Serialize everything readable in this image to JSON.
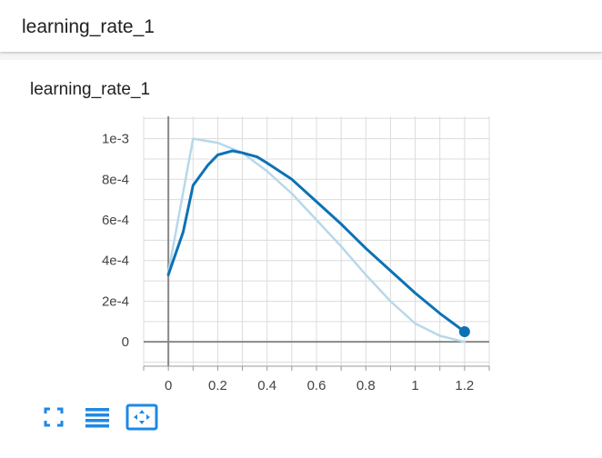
{
  "header": {
    "title": "learning_rate_1"
  },
  "card": {
    "title": "learning_rate_1"
  },
  "toolbar": {
    "buttons": [
      {
        "icon": "fullscreen-icon"
      },
      {
        "icon": "list-icon"
      },
      {
        "icon": "fit-domain-icon"
      }
    ]
  },
  "colors": {
    "smoothed": "#0c72b5",
    "raw": "#b8d8ea",
    "grid": "#dcdcdc",
    "axis": "#888888",
    "icon": "#1e88e5"
  },
  "chart_data": {
    "type": "line",
    "title": "learning_rate_1",
    "xlabel": "",
    "ylabel": "",
    "xlim": [
      -0.1,
      1.3
    ],
    "ylim": [
      -0.00012,
      0.00111
    ],
    "x_ticks": [
      "0",
      "0.2",
      "0.4",
      "0.6",
      "0.8",
      "1",
      "1.2"
    ],
    "x_tick_values": [
      0,
      0.2,
      0.4,
      0.6,
      0.8,
      1.0,
      1.2
    ],
    "y_ticks": [
      "0",
      "2e-4",
      "4e-4",
      "6e-4",
      "8e-4",
      "1e-3"
    ],
    "y_tick_values": [
      0,
      0.0002,
      0.0004,
      0.0006,
      0.0008,
      0.001
    ],
    "grid": true,
    "series": [
      {
        "style": "raw",
        "x": [
          0,
          0.1,
          0.2,
          0.3,
          0.4,
          0.5,
          0.6,
          0.7,
          0.8,
          0.9,
          1.0,
          1.1,
          1.2
        ],
        "y": [
          0.00034,
          0.001,
          0.00098,
          0.00093,
          0.00084,
          0.00073,
          0.0006,
          0.00047,
          0.00033,
          0.0002,
          9e-05,
          3e-05,
          0.0
        ]
      },
      {
        "style": "smoothed",
        "x": [
          0,
          0.06,
          0.1,
          0.16,
          0.2,
          0.26,
          0.3,
          0.36,
          0.4,
          0.5,
          0.6,
          0.7,
          0.8,
          0.9,
          1.0,
          1.1,
          1.2
        ],
        "y": [
          0.00033,
          0.00054,
          0.00077,
          0.00087,
          0.00092,
          0.00094,
          0.00093,
          0.00091,
          0.00088,
          0.0008,
          0.00069,
          0.00058,
          0.00046,
          0.00035,
          0.00024,
          0.00014,
          5e-05
        ]
      }
    ]
  }
}
